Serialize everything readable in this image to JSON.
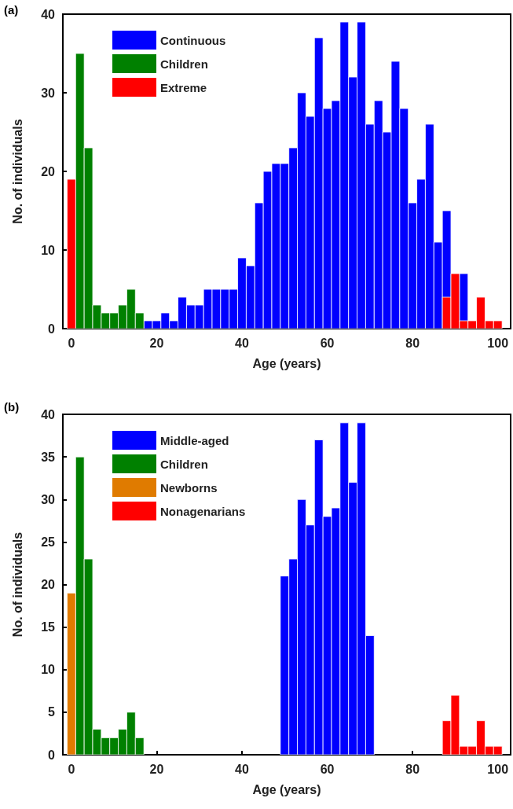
{
  "chart_data": [
    {
      "type": "bar",
      "title": "(a)",
      "xlabel": "Age (years)",
      "ylabel": "No. of individuals",
      "xlim": [
        -2,
        103
      ],
      "xticks": [
        0,
        20,
        40,
        60,
        80,
        100
      ],
      "ylim": [
        0,
        40
      ],
      "yticks": [
        0,
        10,
        20,
        30,
        40
      ],
      "grid": false,
      "legend": "top left",
      "series": [
        {
          "name": "Continuous",
          "color": "#0000ff",
          "x": [
            18,
            20,
            22,
            24,
            26,
            28,
            30,
            32,
            34,
            36,
            38,
            40,
            42,
            44,
            46,
            48,
            50,
            52,
            54,
            56,
            58,
            60,
            62,
            64,
            66,
            68,
            70,
            72,
            74,
            76,
            78,
            80,
            82,
            84,
            86,
            88,
            90,
            92
          ],
          "values": [
            1,
            1,
            2,
            1,
            4,
            3,
            3,
            5,
            5,
            5,
            5,
            9,
            8,
            16,
            20,
            21,
            21,
            23,
            30,
            27,
            37,
            28,
            29,
            39,
            32,
            39,
            26,
            29,
            25,
            34,
            28,
            16,
            19,
            26,
            11,
            15,
            null,
            7
          ]
        },
        {
          "name": "Children",
          "color": "#008000",
          "x": [
            2,
            4,
            6,
            8,
            10,
            12,
            14,
            16
          ],
          "values": [
            35,
            23,
            3,
            2,
            2,
            3,
            5,
            2
          ]
        },
        {
          "name": "Extreme",
          "color": "#ff0000",
          "x": [
            0,
            88,
            90,
            92,
            94,
            96,
            98,
            100
          ],
          "values": [
            19,
            4,
            7,
            1,
            1,
            4,
            1,
            1
          ]
        }
      ]
    },
    {
      "type": "bar",
      "title": "(b)",
      "xlabel": "Age (years)",
      "ylabel": "No. of individuals",
      "xlim": [
        -2,
        103
      ],
      "xticks": [
        0,
        20,
        40,
        60,
        80,
        100
      ],
      "ylim": [
        0,
        40
      ],
      "yticks": [
        0,
        5,
        10,
        15,
        20,
        25,
        30,
        35,
        40
      ],
      "grid": false,
      "legend": "top left",
      "series": [
        {
          "name": "Middle-aged",
          "color": "#0000ff",
          "x": [
            50,
            52,
            54,
            56,
            58,
            60,
            62,
            64,
            66,
            68,
            70
          ],
          "values": [
            21,
            23,
            30,
            27,
            37,
            28,
            29,
            39,
            32,
            39,
            14
          ]
        },
        {
          "name": "Children",
          "color": "#008000",
          "x": [
            2,
            4,
            6,
            8,
            10,
            12,
            14,
            16
          ],
          "values": [
            35,
            23,
            3,
            2,
            2,
            3,
            5,
            2
          ]
        },
        {
          "name": "Newborns",
          "color": "#e07b00",
          "x": [
            0
          ],
          "values": [
            19
          ]
        },
        {
          "name": "Nonagenarians",
          "color": "#ff0000",
          "x": [
            88,
            90,
            92,
            94,
            96,
            98,
            100
          ],
          "values": [
            4,
            7,
            1,
            1,
            4,
            1,
            1
          ]
        }
      ]
    }
  ]
}
